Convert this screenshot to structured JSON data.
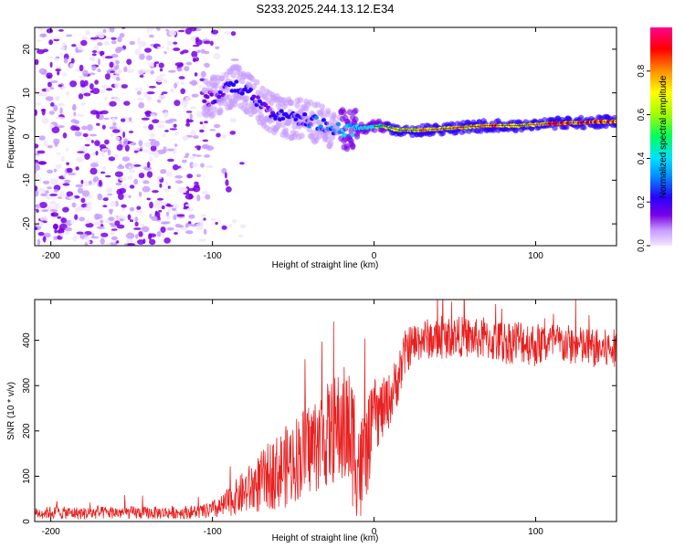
{
  "title": "S233.2025.244.13.12.E34",
  "chart_data": [
    {
      "type": "heatmap",
      "xlabel": "Height of straight line (km)",
      "ylabel": "Frequency (Hz)",
      "xlim": [
        -210,
        150
      ],
      "ylim": [
        -25,
        25
      ],
      "xticks": [
        -200,
        -100,
        0,
        100
      ],
      "yticks": [
        -20,
        -10,
        0,
        10,
        20
      ],
      "colorbar": {
        "label": "Normalized spectral amplitude",
        "range": [
          0,
          1
        ],
        "ticks": [
          0.0,
          0.2,
          0.4,
          0.6,
          0.8
        ],
        "tick_labels": [
          "0.0",
          "0.2",
          "0.4",
          "0.6",
          "0.8"
        ],
        "colormap": [
          "#f2e6ff",
          "#c89cff",
          "#7a00e6",
          "#2a00ff",
          "#0090ff",
          "#00e0ff",
          "#00ff60",
          "#a0ff00",
          "#ffff00",
          "#ff9000",
          "#ff0000",
          "#ff0090"
        ]
      },
      "ridge": {
        "x": [
          -105,
          -95,
          -85,
          -75,
          -65,
          -55,
          -45,
          -35,
          -25,
          -15,
          -5,
          5,
          15,
          30,
          50,
          70,
          90,
          110,
          130,
          150
        ],
        "y": [
          8,
          10,
          12,
          9,
          6,
          4,
          4,
          3,
          2,
          1.5,
          2,
          2.5,
          1.5,
          1.5,
          2,
          2.5,
          2.5,
          3,
          3.2,
          3.5
        ],
        "amplitude": [
          0.2,
          0.25,
          0.3,
          0.25,
          0.25,
          0.3,
          0.3,
          0.35,
          0.35,
          0.45,
          0.5,
          0.6,
          0.75,
          0.85,
          0.8,
          0.85,
          0.8,
          0.9,
          0.9,
          0.85
        ]
      },
      "noise_region_x": [
        -210,
        -100
      ]
    },
    {
      "type": "line",
      "xlabel": "Height of straight line (km)",
      "ylabel": "SNR (10 * v/v)",
      "xlim": [
        -210,
        150
      ],
      "ylim": [
        0,
        490
      ],
      "xticks": [
        -200,
        -100,
        0,
        100
      ],
      "yticks": [
        0,
        100,
        200,
        300,
        400
      ],
      "color": "#e82020",
      "series": [
        {
          "name": "SNR",
          "x": [
            -210,
            -200,
            -180,
            -160,
            -140,
            -120,
            -105,
            -95,
            -85,
            -75,
            -65,
            -55,
            -45,
            -35,
            -25,
            -18,
            -12,
            -8,
            -3,
            0,
            5,
            10,
            15,
            20,
            30,
            40,
            50,
            60,
            70,
            80,
            90,
            100,
            110,
            120,
            130,
            140,
            150
          ],
          "y": [
            18,
            20,
            18,
            20,
            19,
            20,
            22,
            30,
            55,
            75,
            100,
            120,
            150,
            175,
            200,
            210,
            170,
            110,
            180,
            230,
            245,
            270,
            320,
            380,
            405,
            400,
            410,
            405,
            400,
            395,
            400,
            390,
            395,
            390,
            385,
            380,
            380
          ],
          "noise_amplitude": [
            12,
            14,
            14,
            14,
            14,
            14,
            16,
            25,
            40,
            60,
            75,
            90,
            100,
            110,
            120,
            140,
            150,
            130,
            100,
            80,
            70,
            60,
            60,
            50,
            45,
            45,
            45,
            45,
            45,
            50,
            50,
            50,
            45,
            45,
            45,
            45,
            45
          ]
        }
      ]
    }
  ]
}
